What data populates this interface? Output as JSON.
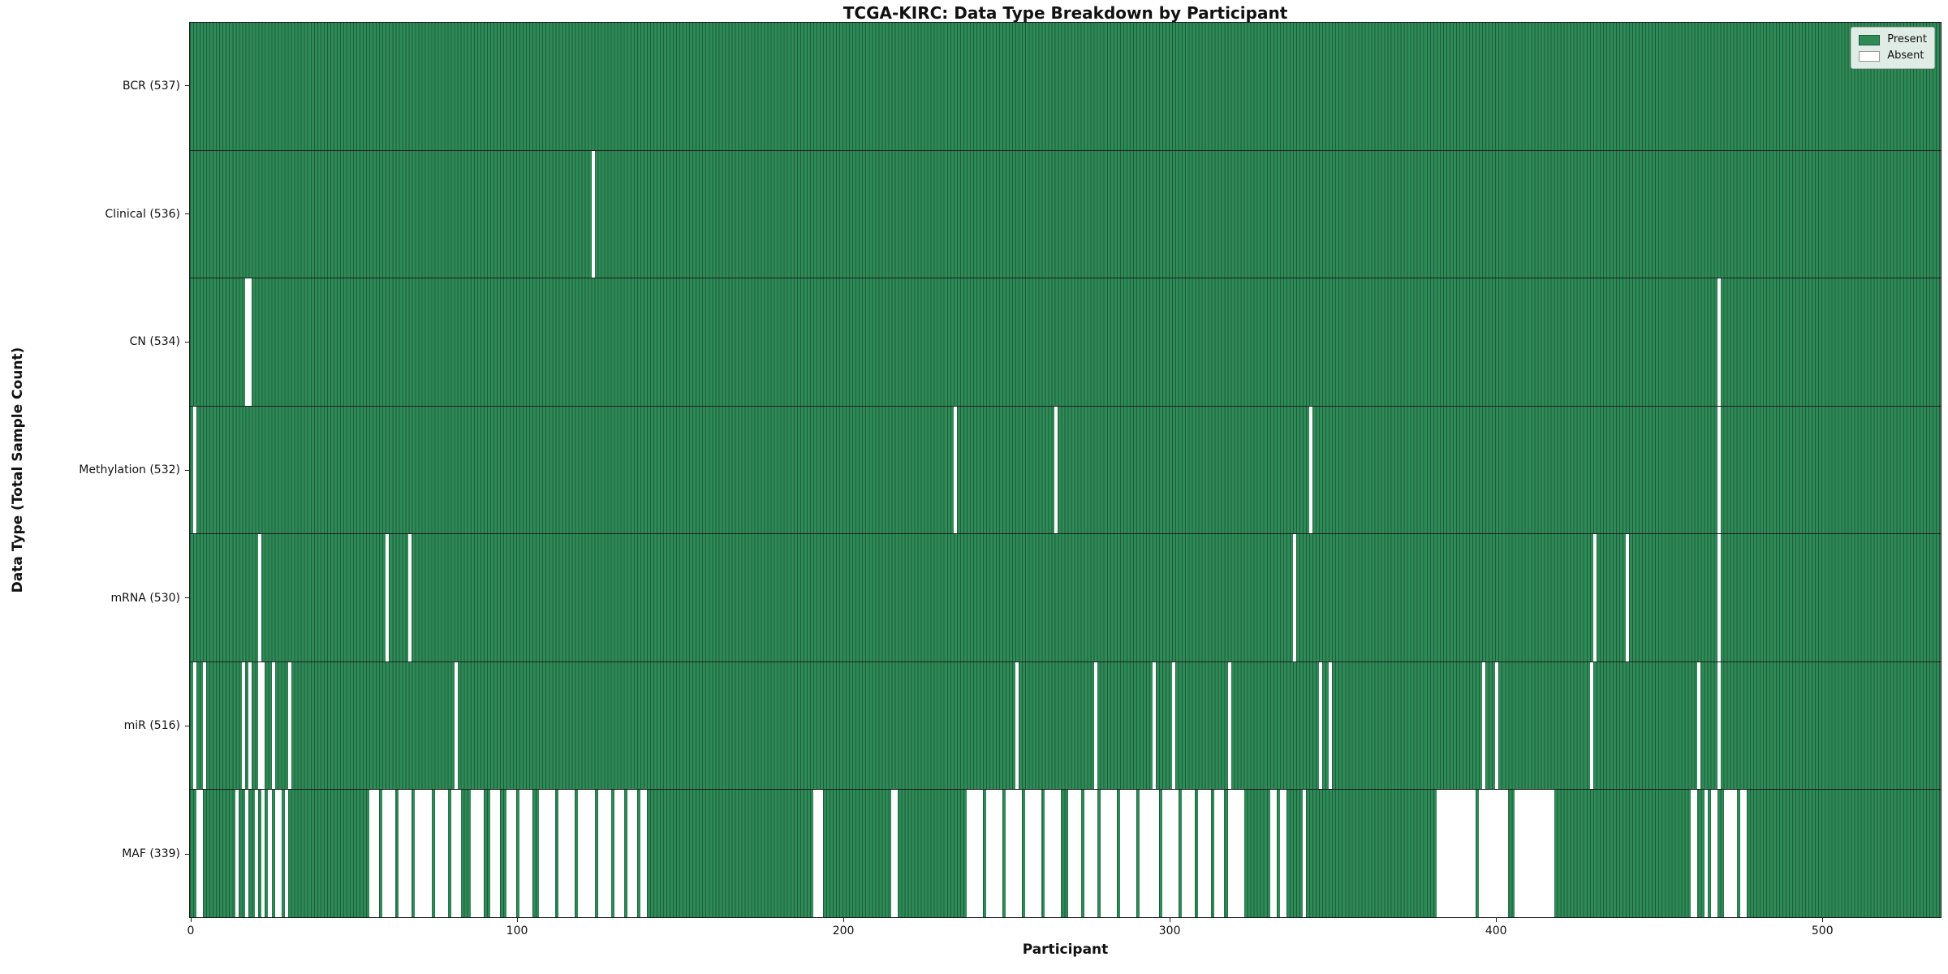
{
  "colors": {
    "present": "#2e8b57",
    "absent": "#ffffff",
    "bar_edge": "#1d5c39",
    "row_separator": "#1f1f1f",
    "axis": "#1a1a1a",
    "text": "#111111",
    "legend_border": "#b3b3b3",
    "figure_background": "#ffffff"
  },
  "chart_data": {
    "type": "heatmap",
    "title": "TCGA-KIRC: Data Type Breakdown by Participant",
    "xlabel": "Participant",
    "ylabel": "Data Type (Total Sample Count)",
    "n_participants": 537,
    "x_range": [
      0,
      537
    ],
    "x_ticks": [
      0,
      100,
      200,
      300,
      400,
      500
    ],
    "grid": false,
    "legend": {
      "position": "upper right",
      "items": [
        {
          "label": "Present",
          "swatch": "present"
        },
        {
          "label": "Absent",
          "swatch": "absent"
        }
      ]
    },
    "rows": [
      {
        "label": "BCR (537)",
        "data_type": "BCR",
        "present_count": 537,
        "absent_ranges": []
      },
      {
        "label": "Clinical (536)",
        "data_type": "Clinical",
        "present_count": 536,
        "absent_ranges": [
          [
            123,
            123
          ]
        ]
      },
      {
        "label": "CN (534)",
        "data_type": "CN",
        "present_count": 534,
        "absent_ranges": [
          [
            17,
            18
          ],
          [
            468,
            468
          ]
        ]
      },
      {
        "label": "Methylation (532)",
        "data_type": "Methylation",
        "present_count": 532,
        "absent_ranges": [
          [
            1,
            1
          ],
          [
            234,
            234
          ],
          [
            265,
            265
          ],
          [
            343,
            343
          ],
          [
            468,
            468
          ]
        ]
      },
      {
        "label": "mRNA (530)",
        "data_type": "mRNA",
        "present_count": 530,
        "absent_ranges": [
          [
            21,
            21
          ],
          [
            60,
            60
          ],
          [
            67,
            67
          ],
          [
            338,
            338
          ],
          [
            430,
            430
          ],
          [
            440,
            440
          ],
          [
            468,
            468
          ]
        ]
      },
      {
        "label": "miR (516)",
        "data_type": "miR",
        "present_count": 516,
        "absent_ranges": [
          [
            1,
            1
          ],
          [
            4,
            4
          ],
          [
            16,
            16
          ],
          [
            18,
            18
          ],
          [
            21,
            22
          ],
          [
            25,
            25
          ],
          [
            30,
            30
          ],
          [
            81,
            81
          ],
          [
            253,
            253
          ],
          [
            277,
            277
          ],
          [
            295,
            295
          ],
          [
            301,
            301
          ],
          [
            318,
            318
          ],
          [
            346,
            346
          ],
          [
            349,
            349
          ],
          [
            396,
            396
          ],
          [
            400,
            400
          ],
          [
            429,
            429
          ],
          [
            462,
            462
          ],
          [
            468,
            468
          ]
        ]
      },
      {
        "label": "MAF (339)",
        "data_type": "MAF",
        "present_count": 339,
        "absent_ranges": [
          [
            2,
            3
          ],
          [
            14,
            14
          ],
          [
            17,
            17
          ],
          [
            20,
            20
          ],
          [
            22,
            22
          ],
          [
            24,
            24
          ],
          [
            26,
            27
          ],
          [
            29,
            29
          ],
          [
            55,
            57
          ],
          [
            59,
            62
          ],
          [
            64,
            67
          ],
          [
            69,
            73
          ],
          [
            75,
            78
          ],
          [
            80,
            82
          ],
          [
            86,
            89
          ],
          [
            92,
            94
          ],
          [
            97,
            99
          ],
          [
            101,
            104
          ],
          [
            107,
            111
          ],
          [
            113,
            117
          ],
          [
            119,
            123
          ],
          [
            125,
            128
          ],
          [
            130,
            132
          ],
          [
            134,
            136
          ],
          [
            138,
            139
          ],
          [
            191,
            193
          ],
          [
            215,
            216
          ],
          [
            238,
            242
          ],
          [
            244,
            248
          ],
          [
            250,
            254
          ],
          [
            256,
            260
          ],
          [
            262,
            266
          ],
          [
            269,
            272
          ],
          [
            274,
            277
          ],
          [
            279,
            283
          ],
          [
            285,
            289
          ],
          [
            291,
            296
          ],
          [
            298,
            302
          ],
          [
            304,
            307
          ],
          [
            309,
            312
          ],
          [
            314,
            316
          ],
          [
            318,
            322
          ],
          [
            331,
            332
          ],
          [
            334,
            335
          ],
          [
            341,
            341
          ],
          [
            382,
            393
          ],
          [
            395,
            403
          ],
          [
            406,
            417
          ],
          [
            460,
            461
          ],
          [
            464,
            464
          ],
          [
            466,
            467
          ],
          [
            470,
            473
          ],
          [
            475,
            476
          ]
        ]
      }
    ]
  }
}
